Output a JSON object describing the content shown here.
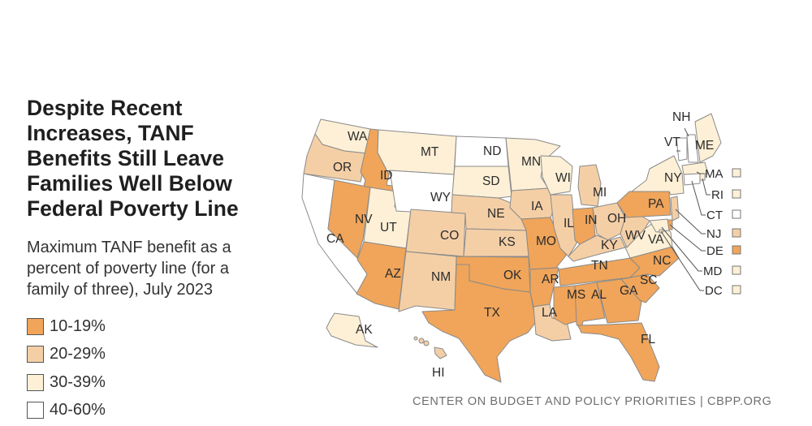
{
  "title": "Despite Recent Increases, TANF Benefits Still Leave Families Well Below Federal Poverty Line",
  "subtitle": "Maximum TANF benefit as a percent of poverty line (for a family of three), July 2023",
  "legend": [
    {
      "label": "10-19%",
      "color": "#f0a55a"
    },
    {
      "label": "20-29%",
      "color": "#f4cfa6"
    },
    {
      "label": "30-39%",
      "color": "#fdf0d6"
    },
    {
      "label": "40-60%",
      "color": "#ffffff"
    }
  ],
  "source": "CENTER ON BUDGET AND POLICY PRIORITIES | CBPP.ORG",
  "colors": {
    "band_10_19": "#f0a55a",
    "band_20_29": "#f4cfa6",
    "band_30_39": "#fdf0d6",
    "band_40_60": "#ffffff",
    "border": "#8a8a8a"
  },
  "chart_data": {
    "type": "choropleth",
    "bins": [
      "10-19%",
      "20-29%",
      "30-39%",
      "40-60%"
    ],
    "states": [
      {
        "code": "WA",
        "bin": "30-39%"
      },
      {
        "code": "OR",
        "bin": "20-29%"
      },
      {
        "code": "CA",
        "bin": "40-60%"
      },
      {
        "code": "ID",
        "bin": "10-19%"
      },
      {
        "code": "NV",
        "bin": "10-19%"
      },
      {
        "code": "UT",
        "bin": "30-39%"
      },
      {
        "code": "AZ",
        "bin": "10-19%"
      },
      {
        "code": "MT",
        "bin": "30-39%"
      },
      {
        "code": "WY",
        "bin": "40-60%"
      },
      {
        "code": "CO",
        "bin": "20-29%"
      },
      {
        "code": "NM",
        "bin": "20-29%"
      },
      {
        "code": "ND",
        "bin": "40-60%"
      },
      {
        "code": "SD",
        "bin": "30-39%"
      },
      {
        "code": "NE",
        "bin": "20-29%"
      },
      {
        "code": "KS",
        "bin": "20-29%"
      },
      {
        "code": "OK",
        "bin": "10-19%"
      },
      {
        "code": "TX",
        "bin": "10-19%"
      },
      {
        "code": "MN",
        "bin": "30-39%"
      },
      {
        "code": "IA",
        "bin": "20-29%"
      },
      {
        "code": "MO",
        "bin": "10-19%"
      },
      {
        "code": "AR",
        "bin": "10-19%"
      },
      {
        "code": "LA",
        "bin": "20-29%"
      },
      {
        "code": "WI",
        "bin": "30-39%"
      },
      {
        "code": "IL",
        "bin": "20-29%"
      },
      {
        "code": "MI",
        "bin": "20-29%"
      },
      {
        "code": "IN",
        "bin": "10-19%"
      },
      {
        "code": "OH",
        "bin": "20-29%"
      },
      {
        "code": "KY",
        "bin": "20-29%"
      },
      {
        "code": "TN",
        "bin": "10-19%"
      },
      {
        "code": "MS",
        "bin": "10-19%"
      },
      {
        "code": "AL",
        "bin": "10-19%"
      },
      {
        "code": "GA",
        "bin": "10-19%"
      },
      {
        "code": "FL",
        "bin": "10-19%"
      },
      {
        "code": "SC",
        "bin": "10-19%"
      },
      {
        "code": "NC",
        "bin": "10-19%"
      },
      {
        "code": "VA",
        "bin": "30-39%"
      },
      {
        "code": "WV",
        "bin": "20-29%"
      },
      {
        "code": "PA",
        "bin": "10-19%"
      },
      {
        "code": "NY",
        "bin": "30-39%"
      },
      {
        "code": "VT",
        "bin": "40-60%"
      },
      {
        "code": "NH",
        "bin": "40-60%"
      },
      {
        "code": "ME",
        "bin": "30-39%"
      },
      {
        "code": "MA",
        "bin": "30-39%"
      },
      {
        "code": "RI",
        "bin": "30-39%"
      },
      {
        "code": "CT",
        "bin": "40-60%"
      },
      {
        "code": "NJ",
        "bin": "20-29%"
      },
      {
        "code": "DE",
        "bin": "10-19%"
      },
      {
        "code": "MD",
        "bin": "30-39%"
      },
      {
        "code": "DC",
        "bin": "30-39%"
      },
      {
        "code": "AK",
        "bin": "30-39%"
      },
      {
        "code": "HI",
        "bin": "20-29%"
      }
    ]
  }
}
